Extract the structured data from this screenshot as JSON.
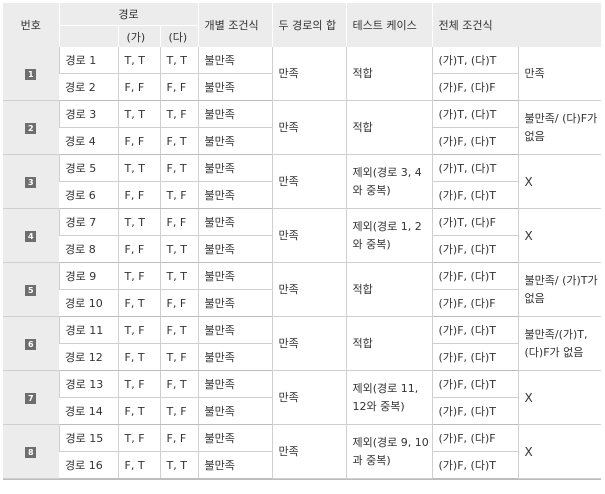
{
  "headers": {
    "number": "번호",
    "path": "경로",
    "path_ga": "(가)",
    "path_da": "(다)",
    "individual": "개별 조건식",
    "sum": "두 경로의 합",
    "testcase": "테스트 케이스",
    "overall": "전체 조건식"
  },
  "groups": [
    {
      "num": "1",
      "sum": "만족",
      "testcase": "적합",
      "result": "만족",
      "rows": [
        {
          "path": "경로 1",
          "ga": "T, T",
          "da": "T, T",
          "individual": "불만족",
          "overall": "(가)T, (다)T"
        },
        {
          "path": "경로 2",
          "ga": "F, F",
          "da": "F, F",
          "individual": "불만족",
          "overall": "(가)F, (다)F"
        }
      ]
    },
    {
      "num": "2",
      "sum": "만족",
      "testcase": "적합",
      "result": "불만족/ (다)F가 없음",
      "rows": [
        {
          "path": "경로 3",
          "ga": "T, T",
          "da": "T, F",
          "individual": "불만족",
          "overall": "(가)T, (다)T"
        },
        {
          "path": "경로 4",
          "ga": "F, F",
          "da": "F, T",
          "individual": "불만족",
          "overall": "(가)F, (다)T"
        }
      ]
    },
    {
      "num": "3",
      "sum": "만족",
      "testcase": "제외(경로 3, 4와 중복)",
      "result": "X",
      "rows": [
        {
          "path": "경로 5",
          "ga": "T, T",
          "da": "F, T",
          "individual": "불만족",
          "overall": "(가)T, (다)T"
        },
        {
          "path": "경로 6",
          "ga": "F, F",
          "da": "T, F",
          "individual": "불만족",
          "overall": "(가)F, (다)T"
        }
      ]
    },
    {
      "num": "4",
      "sum": "만족",
      "testcase": "제외(경로 1, 2와 중복)",
      "result": "X",
      "rows": [
        {
          "path": "경로 7",
          "ga": "T, T",
          "da": "F, F",
          "individual": "불만족",
          "overall": "(가)T, (다)F"
        },
        {
          "path": "경로 8",
          "ga": "F, F",
          "da": "T, T",
          "individual": "불만족",
          "overall": "(가)F, (다)T"
        }
      ]
    },
    {
      "num": "5",
      "sum": "만족",
      "testcase": "적합",
      "result": "불만족/ (가)T가 없음",
      "rows": [
        {
          "path": "경로 9",
          "ga": "T, F",
          "da": "T, T",
          "individual": "불만족",
          "overall": "(가)F, (다)T"
        },
        {
          "path": "경로 10",
          "ga": "F, T",
          "da": "F, F",
          "individual": "불만족",
          "overall": "(가)F, (다)F"
        }
      ]
    },
    {
      "num": "6",
      "sum": "만족",
      "testcase": "적합",
      "result": "불만족/(가)T, (다)F가 없음",
      "rows": [
        {
          "path": "경로 11",
          "ga": "T, F",
          "da": "F, T",
          "individual": "불만족",
          "overall": "(가)F, (다)T"
        },
        {
          "path": "경로 12",
          "ga": "F, T",
          "da": "T, F",
          "individual": "불만족",
          "overall": "(가)F, (다)T"
        }
      ]
    },
    {
      "num": "7",
      "sum": "만족",
      "testcase": "제외(경로 11, 12와 중복)",
      "result": "X",
      "rows": [
        {
          "path": "경로 13",
          "ga": "T, F",
          "da": "F, T",
          "individual": "불만족",
          "overall": "(가)F, (다)T"
        },
        {
          "path": "경로 14",
          "ga": "F, T",
          "da": "T, F",
          "individual": "불만족",
          "overall": "(가)F, (다)T"
        }
      ]
    },
    {
      "num": "8",
      "sum": "만족",
      "testcase": "제외(경로 9, 10과 중복)",
      "result": "X",
      "rows": [
        {
          "path": "경로 15",
          "ga": "T, F",
          "da": "F, F",
          "individual": "불만족",
          "overall": "(가)F, (다)F"
        },
        {
          "path": "경로 16",
          "ga": "F, T",
          "da": "T, T",
          "individual": "불만족",
          "overall": "(가)F, (다)T"
        }
      ]
    }
  ]
}
